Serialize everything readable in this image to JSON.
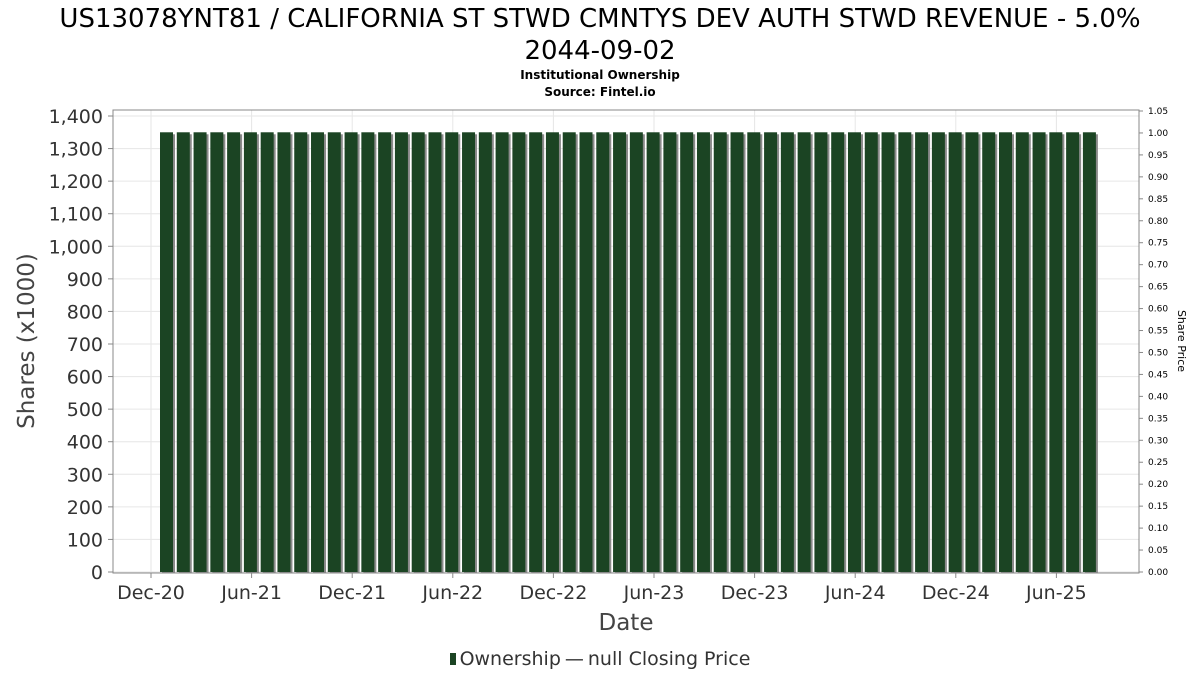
{
  "header": {
    "title_line1": "US13078YNT81 / CALIFORNIA ST STWD CMNTYS DEV AUTH STWD REVENUE - 5.0%",
    "title_line2": "2044-09-02",
    "subtitle": "Institutional Ownership",
    "source": "Source: Fintel.io"
  },
  "legend": {
    "ownership_label": "Ownership",
    "dash_glyph": "—",
    "price_label": "null Closing Price"
  },
  "colors": {
    "bar": "#1b4423",
    "bar_shadow": "#8a8a8a",
    "grid": "#e6e6e6"
  },
  "chart_data": {
    "type": "bar",
    "title": "US13078YNT81 / CALIFORNIA ST STWD CMNTYS DEV AUTH STWD REVENUE - 5.0% 2044-09-02",
    "xlabel": "Date",
    "ylabel": "Shares (x1000)",
    "y2label": "Share Price",
    "ylim": [
      0,
      1400
    ],
    "yticks": [
      "0",
      "100",
      "200",
      "300",
      "400",
      "500",
      "600",
      "700",
      "800",
      "900",
      "1,000",
      "1,100",
      "1,200",
      "1,300",
      "1,400"
    ],
    "y2lim": [
      0,
      1.05
    ],
    "y2ticks": [
      "0.00",
      "0.05",
      "0.10",
      "0.15",
      "0.20",
      "0.25",
      "0.30",
      "0.35",
      "0.40",
      "0.45",
      "0.50",
      "0.55",
      "0.60",
      "0.65",
      "0.70",
      "0.75",
      "0.80",
      "0.85",
      "0.90",
      "0.95",
      "1.00",
      "1.05"
    ],
    "xticks": [
      "Dec-20",
      "Jun-21",
      "Dec-21",
      "Jun-22",
      "Dec-22",
      "Jun-23",
      "Dec-23",
      "Jun-24",
      "Dec-24",
      "Jun-25"
    ],
    "series": [
      {
        "name": "Ownership",
        "values": [
          1350,
          1350,
          1350,
          1350,
          1350,
          1350,
          1350,
          1350,
          1350,
          1350,
          1350,
          1350,
          1350,
          1350,
          1350,
          1350,
          1350,
          1350,
          1350,
          1350,
          1350,
          1350,
          1350,
          1350,
          1350,
          1350,
          1350,
          1350,
          1350,
          1350,
          1350,
          1350,
          1350,
          1350,
          1350,
          1350,
          1350,
          1350,
          1350,
          1350,
          1350,
          1350,
          1350,
          1350,
          1350,
          1350,
          1350,
          1350,
          1350,
          1350,
          1350,
          1350,
          1350,
          1350,
          1350,
          1350
        ]
      }
    ]
  }
}
